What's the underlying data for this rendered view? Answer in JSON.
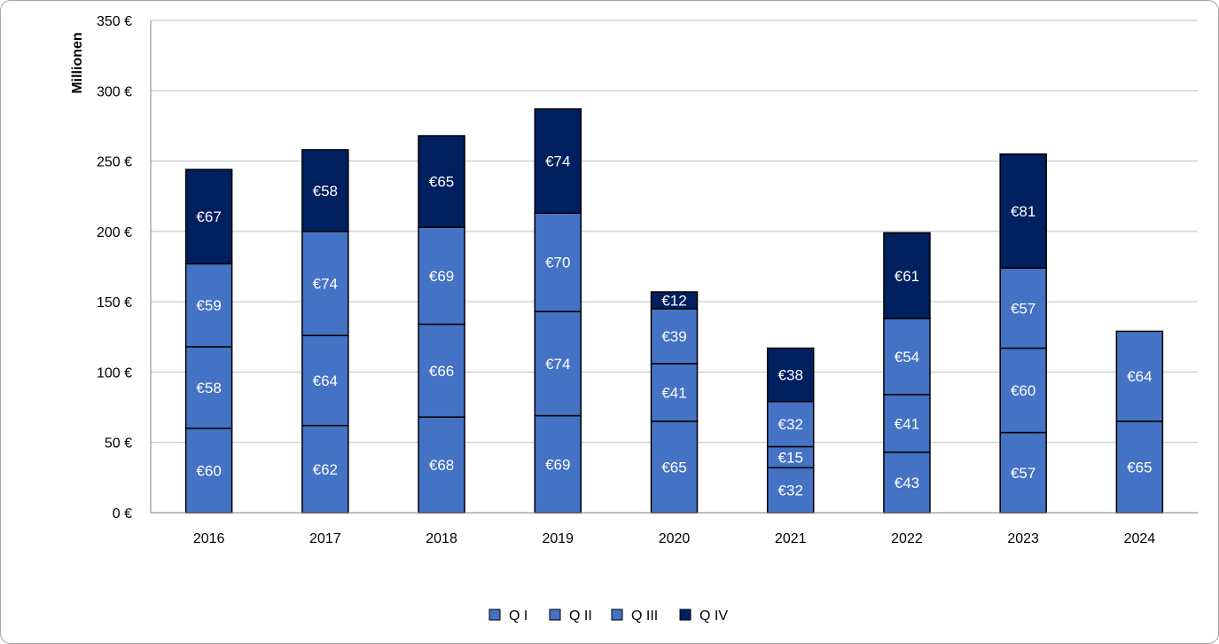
{
  "chart_data": {
    "type": "bar",
    "stacked": true,
    "title": "",
    "xlabel": "",
    "ylabel": "Millionen",
    "ylim": [
      0,
      350
    ],
    "ytick_step": 50,
    "ytick_format": "{v} €",
    "data_label_format": "€{v}",
    "grid": true,
    "legend_position": "bottom",
    "categories": [
      "2016",
      "2017",
      "2018",
      "2019",
      "2020",
      "2021",
      "2022",
      "2023",
      "2024"
    ],
    "series": [
      {
        "name": "Q I",
        "color": "#4472c4",
        "values": [
          60,
          62,
          68,
          69,
          65,
          32,
          43,
          57,
          65
        ]
      },
      {
        "name": "Q II",
        "color": "#4472c4",
        "values": [
          58,
          64,
          66,
          74,
          41,
          15,
          41,
          60,
          64
        ]
      },
      {
        "name": "Q III",
        "color": "#4472c4",
        "values": [
          59,
          74,
          69,
          70,
          39,
          32,
          54,
          57,
          null
        ]
      },
      {
        "name": "Q IV",
        "color": "#002060",
        "values": [
          67,
          58,
          65,
          74,
          12,
          38,
          61,
          81,
          null
        ]
      }
    ]
  }
}
